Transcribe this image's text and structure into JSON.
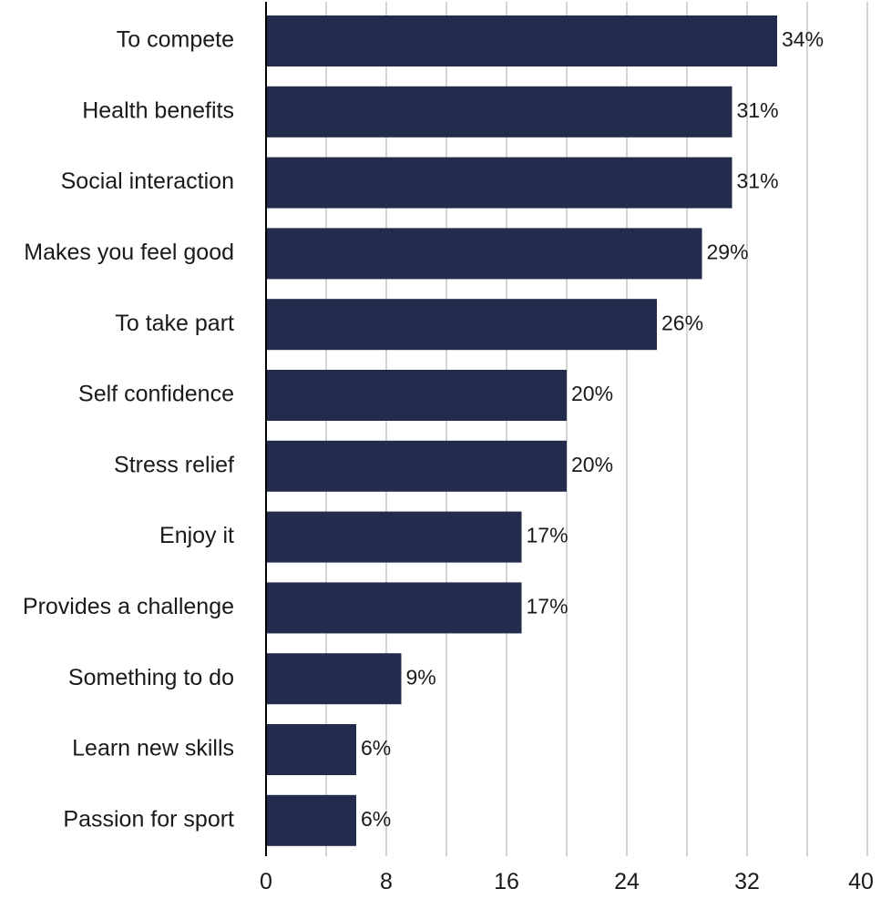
{
  "chart_data": {
    "type": "bar",
    "orientation": "horizontal",
    "title": "",
    "xlabel": "",
    "ylabel": "",
    "categories": [
      "To compete",
      "Health benefits",
      "Social interaction",
      "Makes you feel good",
      "To take part",
      "Self confidence",
      "Stress relief",
      "Enjoy it",
      "Provides a challenge",
      "Something to do",
      "Learn new skills",
      "Passion for sport"
    ],
    "values": [
      34,
      31,
      31,
      29,
      26,
      20,
      20,
      17,
      17,
      9,
      6,
      6
    ],
    "value_labels": [
      "34%",
      "31%",
      "31%",
      "29%",
      "26%",
      "20%",
      "20%",
      "17%",
      "17%",
      "9%",
      "6%",
      "6%"
    ],
    "xlim": [
      0,
      40
    ],
    "x_ticks": [
      0,
      8,
      16,
      24,
      32,
      40
    ],
    "x_tick_labels": [
      "0",
      "8",
      "16",
      "24",
      "32",
      "40"
    ],
    "grid": "vertical",
    "bar_color": "#232c4c",
    "grid_color": "#bdbdbd",
    "axis_color": "#000000"
  }
}
